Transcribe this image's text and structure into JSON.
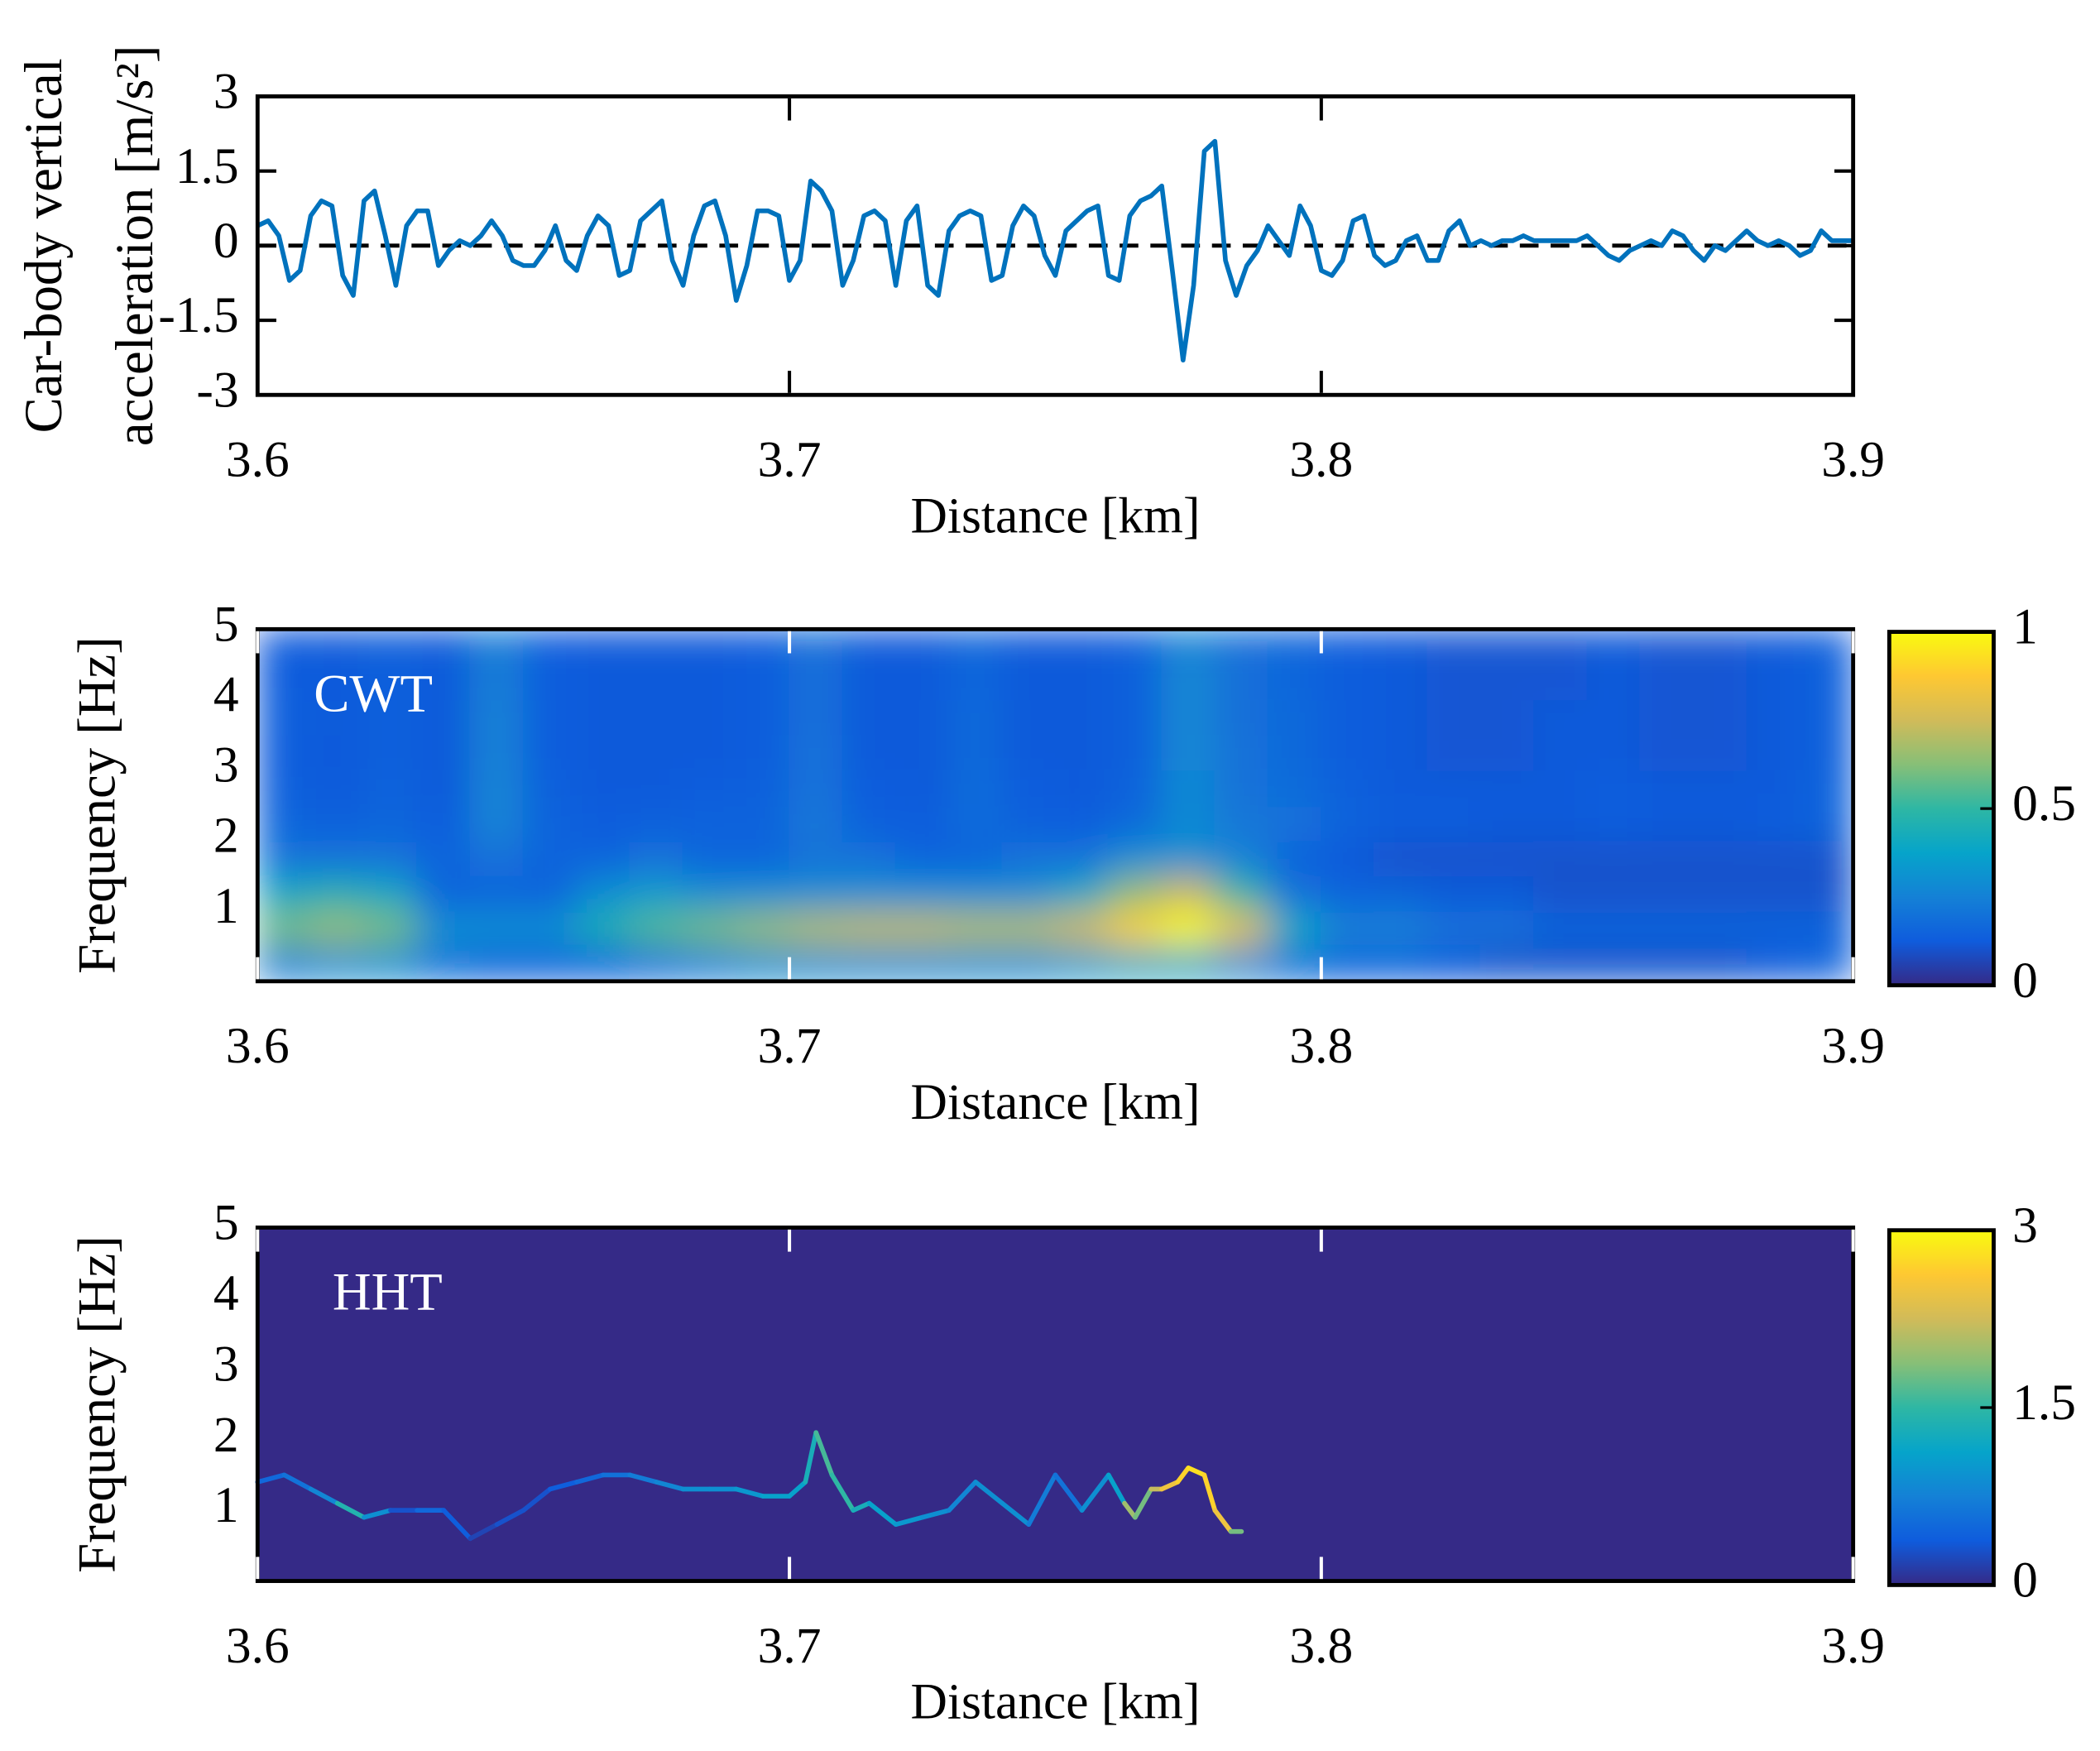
{
  "chart_data": [
    {
      "type": "line",
      "ylabel": [
        "Car-body vertical",
        "acceleration [m/s²]"
      ],
      "xlabel": "Distance [km]",
      "color": "#0072bd",
      "hline": 0,
      "xlim": [
        3.6,
        3.9
      ],
      "xticks": [
        3.6,
        3.7,
        3.8,
        3.9
      ],
      "ylim": [
        -3,
        3
      ],
      "yticks": [
        -3,
        -1.5,
        0,
        1.5,
        3
      ],
      "x": [
        3.6,
        3.602,
        3.604,
        3.606,
        3.608,
        3.61,
        3.612,
        3.614,
        3.616,
        3.618,
        3.62,
        3.622,
        3.624,
        3.626,
        3.628,
        3.63,
        3.632,
        3.634,
        3.636,
        3.638,
        3.64,
        3.642,
        3.644,
        3.646,
        3.648,
        3.65,
        3.652,
        3.654,
        3.656,
        3.658,
        3.66,
        3.662,
        3.664,
        3.666,
        3.668,
        3.67,
        3.672,
        3.674,
        3.676,
        3.678,
        3.68,
        3.682,
        3.684,
        3.686,
        3.688,
        3.69,
        3.692,
        3.694,
        3.696,
        3.698,
        3.7,
        3.702,
        3.704,
        3.706,
        3.708,
        3.71,
        3.712,
        3.714,
        3.716,
        3.718,
        3.72,
        3.722,
        3.724,
        3.726,
        3.728,
        3.73,
        3.732,
        3.734,
        3.736,
        3.738,
        3.74,
        3.742,
        3.744,
        3.746,
        3.748,
        3.75,
        3.752,
        3.754,
        3.756,
        3.758,
        3.76,
        3.762,
        3.764,
        3.766,
        3.768,
        3.77,
        3.772,
        3.774,
        3.776,
        3.778,
        3.78,
        3.782,
        3.784,
        3.786,
        3.788,
        3.79,
        3.792,
        3.794,
        3.796,
        3.798,
        3.8,
        3.802,
        3.804,
        3.806,
        3.808,
        3.81,
        3.812,
        3.814,
        3.816,
        3.818,
        3.82,
        3.822,
        3.824,
        3.826,
        3.828,
        3.83,
        3.832,
        3.834,
        3.836,
        3.838,
        3.84,
        3.842,
        3.844,
        3.846,
        3.848,
        3.85,
        3.852,
        3.854,
        3.856,
        3.858,
        3.86,
        3.862,
        3.864,
        3.866,
        3.868,
        3.87,
        3.872,
        3.874,
        3.876,
        3.878,
        3.88,
        3.882,
        3.884,
        3.886,
        3.888,
        3.89,
        3.892,
        3.894,
        3.896,
        3.898,
        3.9
      ],
      "values": [
        0.4,
        0.5,
        0.2,
        -0.7,
        -0.5,
        0.6,
        0.9,
        0.8,
        -0.6,
        -1.0,
        0.9,
        1.1,
        0.2,
        -0.8,
        0.4,
        0.7,
        0.7,
        -0.4,
        -0.1,
        0.1,
        0.0,
        0.2,
        0.5,
        0.2,
        -0.3,
        -0.4,
        -0.4,
        -0.1,
        0.4,
        -0.3,
        -0.5,
        0.2,
        0.6,
        0.4,
        -0.6,
        -0.5,
        0.5,
        0.7,
        0.9,
        -0.3,
        -0.8,
        0.2,
        0.8,
        0.9,
        0.2,
        -1.1,
        -0.4,
        0.7,
        0.7,
        0.6,
        -0.7,
        -0.3,
        1.3,
        1.1,
        0.7,
        -0.8,
        -0.3,
        0.6,
        0.7,
        0.5,
        -0.8,
        0.5,
        0.8,
        -0.8,
        -1.0,
        0.3,
        0.6,
        0.7,
        0.6,
        -0.7,
        -0.6,
        0.4,
        0.8,
        0.6,
        -0.2,
        -0.6,
        0.3,
        0.5,
        0.7,
        0.8,
        -0.6,
        -0.7,
        0.6,
        0.9,
        1.0,
        1.2,
        -0.5,
        -2.3,
        -0.8,
        1.9,
        2.1,
        -0.3,
        -1.0,
        -0.4,
        -0.1,
        0.4,
        0.1,
        -0.2,
        0.8,
        0.4,
        -0.5,
        -0.6,
        -0.3,
        0.5,
        0.6,
        -0.2,
        -0.4,
        -0.3,
        0.1,
        0.2,
        -0.3,
        -0.3,
        0.3,
        0.5,
        0.0,
        0.1,
        0.0,
        0.1,
        0.1,
        0.2,
        0.1,
        0.1,
        0.1,
        0.1,
        0.1,
        0.2,
        0.0,
        -0.2,
        -0.3,
        -0.1,
        0.0,
        0.1,
        0.0,
        0.3,
        0.2,
        -0.1,
        -0.3,
        0.0,
        -0.1,
        0.1,
        0.3,
        0.1,
        0.0,
        0.1,
        0.0,
        -0.2,
        -0.1,
        0.3,
        0.1,
        0.1,
        0.1
      ]
    },
    {
      "type": "heatmap",
      "annotation": "CWT",
      "ylabel": "Frequency [Hz]",
      "xlabel": "Distance [km]",
      "xlim": [
        3.6,
        3.9
      ],
      "xticks": [
        3.6,
        3.7,
        3.8,
        3.9
      ],
      "ylim": [
        0,
        5
      ],
      "yticks": [
        1,
        2,
        3,
        4,
        5
      ],
      "clim": [
        0,
        1
      ],
      "cticks": [
        0,
        0.5,
        1
      ],
      "colormap": [
        "#352a87",
        "#0f5cdd",
        "#1481d6",
        "#06a4ca",
        "#2eb7a4",
        "#87bf77",
        "#d1bb59",
        "#fec832",
        "#f9fb0e"
      ],
      "x": [
        3.605,
        3.615,
        3.625,
        3.635,
        3.645,
        3.655,
        3.665,
        3.675,
        3.685,
        3.695,
        3.705,
        3.715,
        3.725,
        3.735,
        3.745,
        3.755,
        3.765,
        3.775,
        3.785,
        3.795,
        3.805,
        3.815,
        3.825,
        3.835,
        3.845,
        3.855,
        3.865,
        3.875,
        3.885,
        3.895
      ],
      "y": [
        0.25,
        0.75,
        1.25,
        1.75,
        2.25,
        2.75,
        3.25,
        3.75,
        4.25,
        4.75
      ],
      "z": [
        [
          0.25,
          0.3,
          0.3,
          0.2,
          0.15,
          0.15,
          0.15,
          0.2,
          0.25,
          0.3,
          0.3,
          0.3,
          0.3,
          0.3,
          0.3,
          0.35,
          0.4,
          0.4,
          0.3,
          0.2,
          0.15,
          0.15,
          0.12,
          0.1,
          0.1,
          0.1,
          0.1,
          0.1,
          0.12,
          0.15
        ],
        [
          0.6,
          0.65,
          0.6,
          0.3,
          0.3,
          0.3,
          0.45,
          0.55,
          0.6,
          0.65,
          0.7,
          0.72,
          0.72,
          0.7,
          0.7,
          0.75,
          0.9,
          1.0,
          0.8,
          0.4,
          0.25,
          0.25,
          0.2,
          0.2,
          0.15,
          0.15,
          0.15,
          0.15,
          0.15,
          0.15
        ],
        [
          0.4,
          0.45,
          0.4,
          0.15,
          0.15,
          0.15,
          0.3,
          0.35,
          0.3,
          0.3,
          0.3,
          0.3,
          0.3,
          0.3,
          0.3,
          0.4,
          0.65,
          0.75,
          0.5,
          0.2,
          0.15,
          0.15,
          0.12,
          0.12,
          0.1,
          0.1,
          0.1,
          0.1,
          0.1,
          0.1
        ],
        [
          0.2,
          0.2,
          0.2,
          0.15,
          0.2,
          0.15,
          0.15,
          0.2,
          0.15,
          0.15,
          0.2,
          0.2,
          0.15,
          0.15,
          0.2,
          0.2,
          0.3,
          0.3,
          0.25,
          0.15,
          0.12,
          0.1,
          0.1,
          0.1,
          0.1,
          0.1,
          0.1,
          0.1,
          0.1,
          0.1
        ],
        [
          0.16,
          0.14,
          0.16,
          0.13,
          0.26,
          0.15,
          0.13,
          0.14,
          0.15,
          0.15,
          0.22,
          0.14,
          0.13,
          0.18,
          0.14,
          0.13,
          0.17,
          0.28,
          0.22,
          0.2,
          0.15,
          0.13,
          0.13,
          0.12,
          0.12,
          0.13,
          0.12,
          0.12,
          0.13,
          0.15
        ],
        [
          0.14,
          0.12,
          0.15,
          0.12,
          0.26,
          0.14,
          0.12,
          0.12,
          0.13,
          0.14,
          0.2,
          0.13,
          0.12,
          0.18,
          0.13,
          0.12,
          0.15,
          0.28,
          0.2,
          0.18,
          0.14,
          0.12,
          0.12,
          0.12,
          0.12,
          0.13,
          0.12,
          0.12,
          0.12,
          0.15
        ],
        [
          0.13,
          0.12,
          0.14,
          0.12,
          0.25,
          0.13,
          0.12,
          0.12,
          0.12,
          0.13,
          0.2,
          0.12,
          0.12,
          0.17,
          0.12,
          0.12,
          0.14,
          0.27,
          0.2,
          0.17,
          0.13,
          0.12,
          0.11,
          0.11,
          0.12,
          0.12,
          0.11,
          0.11,
          0.12,
          0.14
        ],
        [
          0.14,
          0.12,
          0.14,
          0.12,
          0.25,
          0.13,
          0.12,
          0.12,
          0.12,
          0.13,
          0.19,
          0.12,
          0.12,
          0.17,
          0.12,
          0.12,
          0.14,
          0.27,
          0.19,
          0.17,
          0.13,
          0.12,
          0.11,
          0.11,
          0.12,
          0.12,
          0.11,
          0.11,
          0.12,
          0.14
        ],
        [
          0.13,
          0.12,
          0.14,
          0.12,
          0.24,
          0.13,
          0.12,
          0.12,
          0.12,
          0.13,
          0.19,
          0.12,
          0.12,
          0.16,
          0.12,
          0.12,
          0.14,
          0.27,
          0.19,
          0.16,
          0.13,
          0.12,
          0.11,
          0.11,
          0.11,
          0.12,
          0.11,
          0.11,
          0.12,
          0.14
        ],
        [
          0.13,
          0.12,
          0.14,
          0.12,
          0.24,
          0.13,
          0.12,
          0.12,
          0.12,
          0.13,
          0.19,
          0.12,
          0.12,
          0.16,
          0.12,
          0.12,
          0.14,
          0.26,
          0.19,
          0.16,
          0.13,
          0.12,
          0.11,
          0.11,
          0.11,
          0.12,
          0.11,
          0.11,
          0.12,
          0.14
        ]
      ]
    },
    {
      "type": "ridge",
      "annotation": "HHT",
      "ylabel": "Frequency [Hz]",
      "xlabel": "Distance [km]",
      "xlim": [
        3.6,
        3.9
      ],
      "xticks": [
        3.6,
        3.7,
        3.8,
        3.9
      ],
      "ylim": [
        0,
        5
      ],
      "yticks": [
        1,
        2,
        3,
        4,
        5
      ],
      "clim": [
        0,
        3
      ],
      "cticks": [
        0,
        1.5,
        3
      ],
      "colormap": [
        "#352a87",
        "#0f5cdd",
        "#1481d6",
        "#06a4ca",
        "#2eb7a4",
        "#87bf77",
        "#d1bb59",
        "#fec832",
        "#f9fb0e"
      ],
      "x": [
        3.6,
        3.605,
        3.61,
        3.615,
        3.62,
        3.625,
        3.63,
        3.635,
        3.64,
        3.645,
        3.65,
        3.655,
        3.66,
        3.665,
        3.67,
        3.675,
        3.68,
        3.685,
        3.69,
        3.695,
        3.7,
        3.703,
        3.705,
        3.708,
        3.712,
        3.715,
        3.72,
        3.725,
        3.73,
        3.735,
        3.74,
        3.745,
        3.75,
        3.755,
        3.76,
        3.763,
        3.765,
        3.768,
        3.77,
        3.773,
        3.775,
        3.778,
        3.78,
        3.783,
        3.785
      ],
      "y": [
        1.4,
        1.5,
        1.3,
        1.1,
        0.9,
        1.0,
        1.0,
        1.0,
        0.6,
        0.8,
        1.0,
        1.3,
        1.4,
        1.5,
        1.5,
        1.4,
        1.3,
        1.3,
        1.3,
        1.2,
        1.2,
        1.4,
        2.1,
        1.5,
        1.0,
        1.1,
        0.8,
        0.9,
        1.0,
        1.4,
        1.1,
        0.8,
        1.5,
        1.0,
        1.5,
        1.1,
        0.9,
        1.3,
        1.3,
        1.4,
        1.6,
        1.5,
        1.0,
        0.7,
        0.7
      ],
      "values": [
        0.5,
        0.6,
        0.8,
        1.4,
        0.9,
        0.3,
        0.5,
        0.4,
        0.2,
        0.3,
        0.3,
        0.4,
        0.5,
        0.6,
        0.7,
        0.8,
        0.9,
        0.9,
        1.0,
        1.1,
        1.1,
        1.3,
        1.6,
        1.5,
        1.3,
        1.1,
        1.0,
        0.9,
        0.8,
        0.9,
        0.9,
        0.7,
        0.6,
        0.9,
        1.1,
        2.0,
        1.8,
        2.2,
        2.5,
        2.7,
        2.8,
        2.7,
        2.5,
        1.8,
        1.2
      ]
    }
  ]
}
